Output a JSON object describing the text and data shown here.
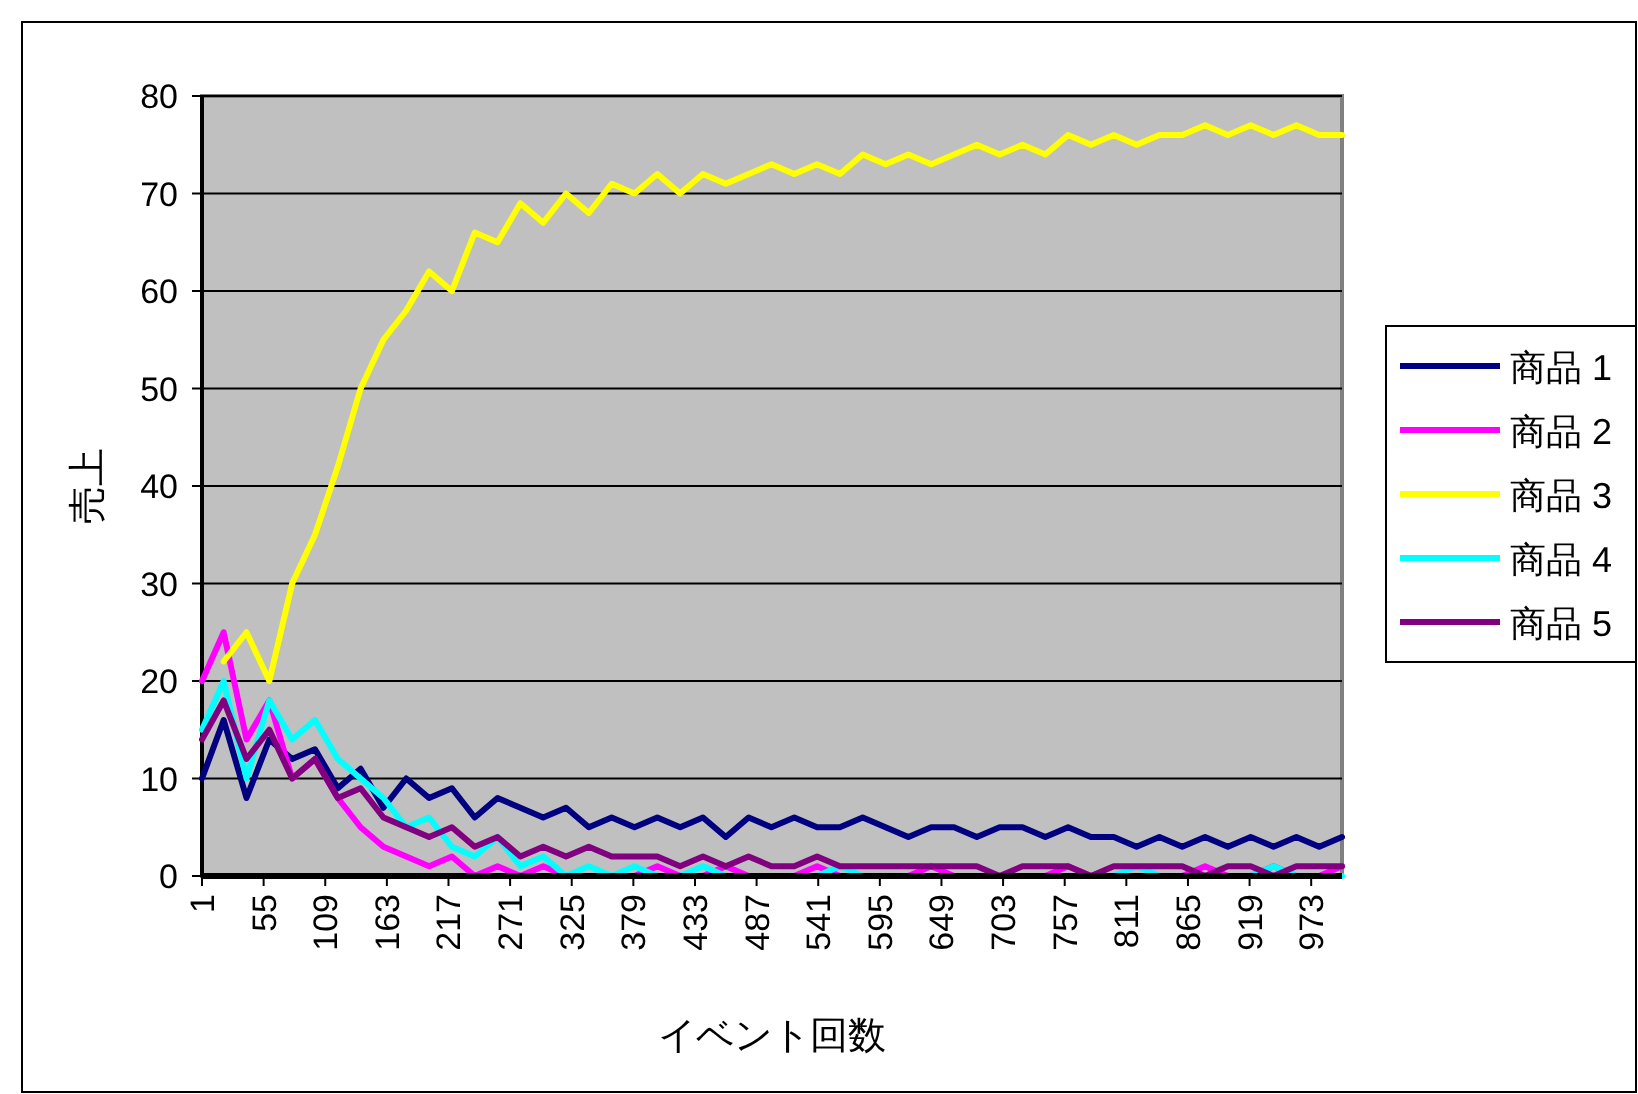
{
  "chart_data": {
    "type": "line",
    "xlabel": "イベント回数",
    "ylabel": "売上",
    "x": [
      1,
      20,
      40,
      60,
      80,
      100,
      120,
      140,
      160,
      180,
      200,
      220,
      240,
      260,
      280,
      300,
      320,
      340,
      360,
      380,
      400,
      420,
      440,
      460,
      480,
      500,
      520,
      540,
      560,
      580,
      600,
      620,
      640,
      660,
      680,
      700,
      720,
      740,
      760,
      780,
      800,
      820,
      840,
      860,
      880,
      900,
      920,
      940,
      960,
      980,
      1000
    ],
    "xlim": [
      1,
      1000
    ],
    "xticks": [
      1,
      55,
      109,
      163,
      217,
      271,
      325,
      379,
      433,
      487,
      541,
      595,
      649,
      703,
      757,
      811,
      865,
      919,
      973
    ],
    "ylim": [
      0,
      80
    ],
    "yticks": [
      0,
      10,
      20,
      30,
      40,
      50,
      60,
      70,
      80
    ],
    "grid": "y",
    "legend": "right",
    "series": [
      {
        "name": "商品 1",
        "color": "#000080",
        "values": [
          10,
          16,
          8,
          14,
          12,
          13,
          9,
          11,
          7,
          10,
          8,
          9,
          6,
          8,
          7,
          6,
          7,
          5,
          6,
          5,
          6,
          5,
          6,
          4,
          6,
          5,
          6,
          5,
          5,
          6,
          5,
          4,
          5,
          5,
          4,
          5,
          5,
          4,
          5,
          4,
          4,
          3,
          4,
          3,
          4,
          3,
          4,
          3,
          4,
          3,
          4
        ]
      },
      {
        "name": "商品 2",
        "color": "#ff00ff",
        "values": [
          20,
          25,
          14,
          18,
          10,
          12,
          8,
          5,
          3,
          2,
          1,
          2,
          0,
          1,
          0,
          1,
          0,
          null,
          0,
          0,
          1,
          0,
          0,
          1,
          0,
          0,
          0,
          1,
          0,
          0,
          0,
          0,
          1,
          0,
          0,
          0,
          0,
          0,
          1,
          0,
          0,
          0,
          0,
          0,
          1,
          0,
          0,
          1,
          0,
          0,
          1
        ]
      },
      {
        "name": "商品 3",
        "color": "#ffff00",
        "values": [
          null,
          22,
          25,
          20,
          30,
          35,
          42,
          50,
          55,
          58,
          62,
          60,
          66,
          65,
          69,
          67,
          70,
          68,
          71,
          70,
          72,
          70,
          72,
          71,
          72,
          73,
          72,
          73,
          72,
          74,
          73,
          74,
          73,
          74,
          75,
          74,
          75,
          74,
          76,
          75,
          76,
          75,
          76,
          76,
          77,
          76,
          77,
          76,
          77,
          76,
          76
        ]
      },
      {
        "name": "商品 4",
        "color": "#00ffff",
        "values": [
          15,
          20,
          10,
          18,
          14,
          16,
          12,
          10,
          8,
          5,
          6,
          3,
          2,
          4,
          1,
          2,
          0,
          1,
          0,
          1,
          0,
          0,
          1,
          0,
          0,
          0,
          0,
          0,
          1,
          0,
          0,
          0,
          0,
          0,
          0,
          0,
          0,
          0,
          0,
          0,
          0,
          1,
          0,
          0,
          0,
          0,
          0,
          1,
          0,
          0,
          0
        ]
      },
      {
        "name": "商品 5",
        "color": "#800080",
        "values": [
          14,
          18,
          12,
          15,
          10,
          12,
          8,
          9,
          6,
          5,
          4,
          5,
          3,
          4,
          2,
          3,
          2,
          3,
          2,
          2,
          2,
          1,
          2,
          1,
          2,
          1,
          1,
          2,
          1,
          1,
          1,
          1,
          1,
          1,
          1,
          0,
          1,
          1,
          1,
          0,
          1,
          1,
          1,
          1,
          0,
          1,
          1,
          0,
          1,
          1,
          1
        ]
      }
    ]
  }
}
